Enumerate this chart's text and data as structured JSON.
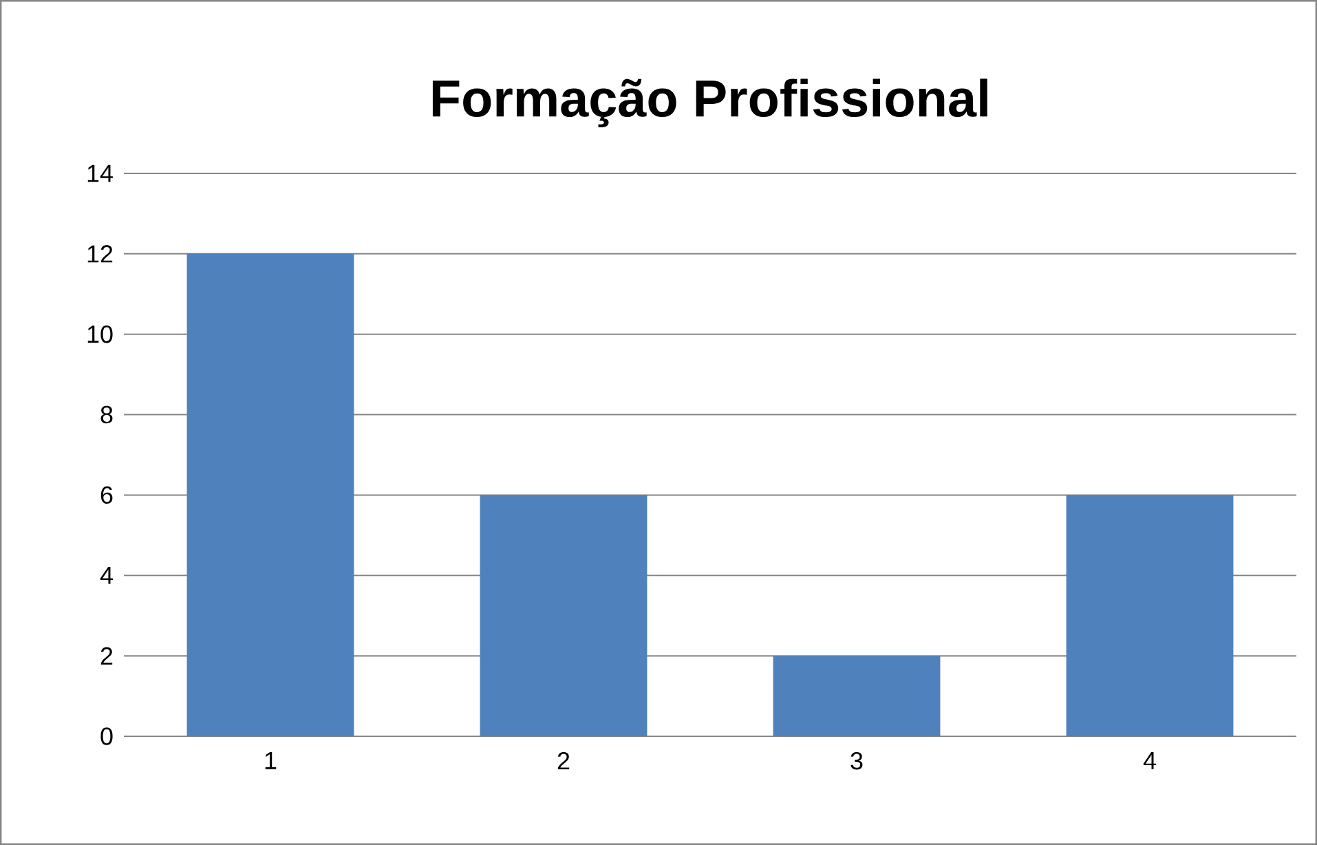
{
  "chart_data": {
    "type": "bar",
    "title": "Formação Profissional",
    "categories": [
      "1",
      "2",
      "3",
      "4"
    ],
    "values": [
      12,
      6,
      2,
      6
    ],
    "color": "#4f81bd",
    "ylim": [
      0,
      14
    ],
    "yticks": [
      0,
      2,
      4,
      6,
      8,
      10,
      12,
      14
    ],
    "grid": "y"
  }
}
